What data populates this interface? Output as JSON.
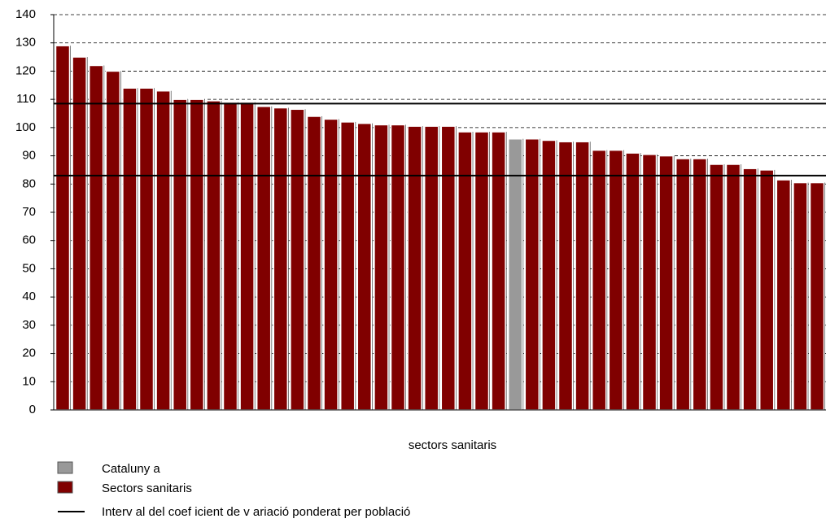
{
  "chart_data": {
    "type": "bar",
    "x_label": "sectors sanitaris",
    "categories": [
      null,
      null,
      null,
      null,
      null,
      null,
      null,
      null,
      null,
      null,
      null,
      null,
      null,
      null,
      null,
      null,
      null,
      null,
      null,
      null,
      null,
      null,
      null,
      null,
      null,
      null,
      null,
      null,
      null,
      null,
      null,
      null,
      null,
      null,
      null,
      null,
      null,
      null,
      null,
      null,
      null,
      null,
      null,
      null,
      null,
      null,
      null
    ],
    "series": [
      {
        "name": "Cataluny a",
        "color": "#999999",
        "values": [
          null,
          null,
          null,
          null,
          null,
          null,
          null,
          null,
          null,
          null,
          null,
          null,
          null,
          null,
          null,
          null,
          null,
          null,
          null,
          null,
          null,
          null,
          null,
          null,
          null,
          null,
          null,
          96,
          null,
          null,
          null,
          null,
          null,
          null,
          null,
          null,
          null,
          null,
          null,
          null,
          null,
          null,
          null,
          null,
          null,
          null,
          null
        ]
      },
      {
        "name": "Sectors sanitaris",
        "color": "#800000",
        "values": [
          129,
          125,
          122,
          120,
          114,
          114,
          113,
          110,
          110,
          109.5,
          109,
          109,
          107.5,
          107,
          106.5,
          104,
          103,
          102,
          101.5,
          101,
          101,
          100.5,
          100.5,
          100.5,
          98.5,
          98.5,
          98.5,
          null,
          96,
          95.5,
          95,
          95,
          92,
          92,
          91,
          90.5,
          90,
          89,
          89,
          87,
          87,
          85.5,
          85,
          81.5,
          80.5,
          80.5,
          80.5
        ]
      }
    ],
    "reference_lines": {
      "name": "Interv al del coef icient de v ariació ponderat per població",
      "color": "#000000",
      "values": [
        108.5,
        83
      ]
    },
    "ylim": [
      0,
      140
    ],
    "yticks": [
      0,
      10,
      20,
      30,
      40,
      50,
      60,
      70,
      80,
      90,
      100,
      110,
      120,
      130,
      140
    ],
    "grid": true
  }
}
